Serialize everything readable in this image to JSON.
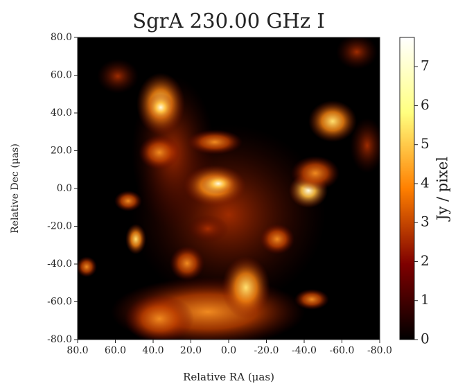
{
  "chart_data": {
    "type": "image",
    "title": "SgrA 230.00 GHz I",
    "x_label": "Relative RA (μas)",
    "y_label": "Relative Dec (μas)",
    "colorbar_label": "Jy / pixel",
    "xlim": [
      80,
      -80
    ],
    "ylim": [
      -80,
      80
    ],
    "xticks": [
      {
        "value": 80,
        "label": "80.0"
      },
      {
        "value": 60,
        "label": "60.0"
      },
      {
        "value": 40,
        "label": "40.0"
      },
      {
        "value": 20,
        "label": "20.0"
      },
      {
        "value": 0,
        "label": "0.0"
      },
      {
        "value": -20,
        "label": "-20.0"
      },
      {
        "value": -40,
        "label": "-40.0"
      },
      {
        "value": -60,
        "label": "-60.0"
      },
      {
        "value": -80,
        "label": "-80.0"
      }
    ],
    "yticks": [
      {
        "value": -80,
        "label": "-80.0"
      },
      {
        "value": -60,
        "label": "-60.0"
      },
      {
        "value": -40,
        "label": "-40.0"
      },
      {
        "value": -20,
        "label": "-20.0"
      },
      {
        "value": 0,
        "label": "0.0"
      },
      {
        "value": 20,
        "label": "20.0"
      },
      {
        "value": 40,
        "label": "40.0"
      },
      {
        "value": 60,
        "label": "60.0"
      },
      {
        "value": 80,
        "label": "80.0"
      }
    ],
    "clim": [
      0,
      7.75
    ],
    "cticks": [
      0,
      1,
      2,
      3,
      4,
      5,
      6,
      7
    ],
    "colormap": "afmhot"
  }
}
